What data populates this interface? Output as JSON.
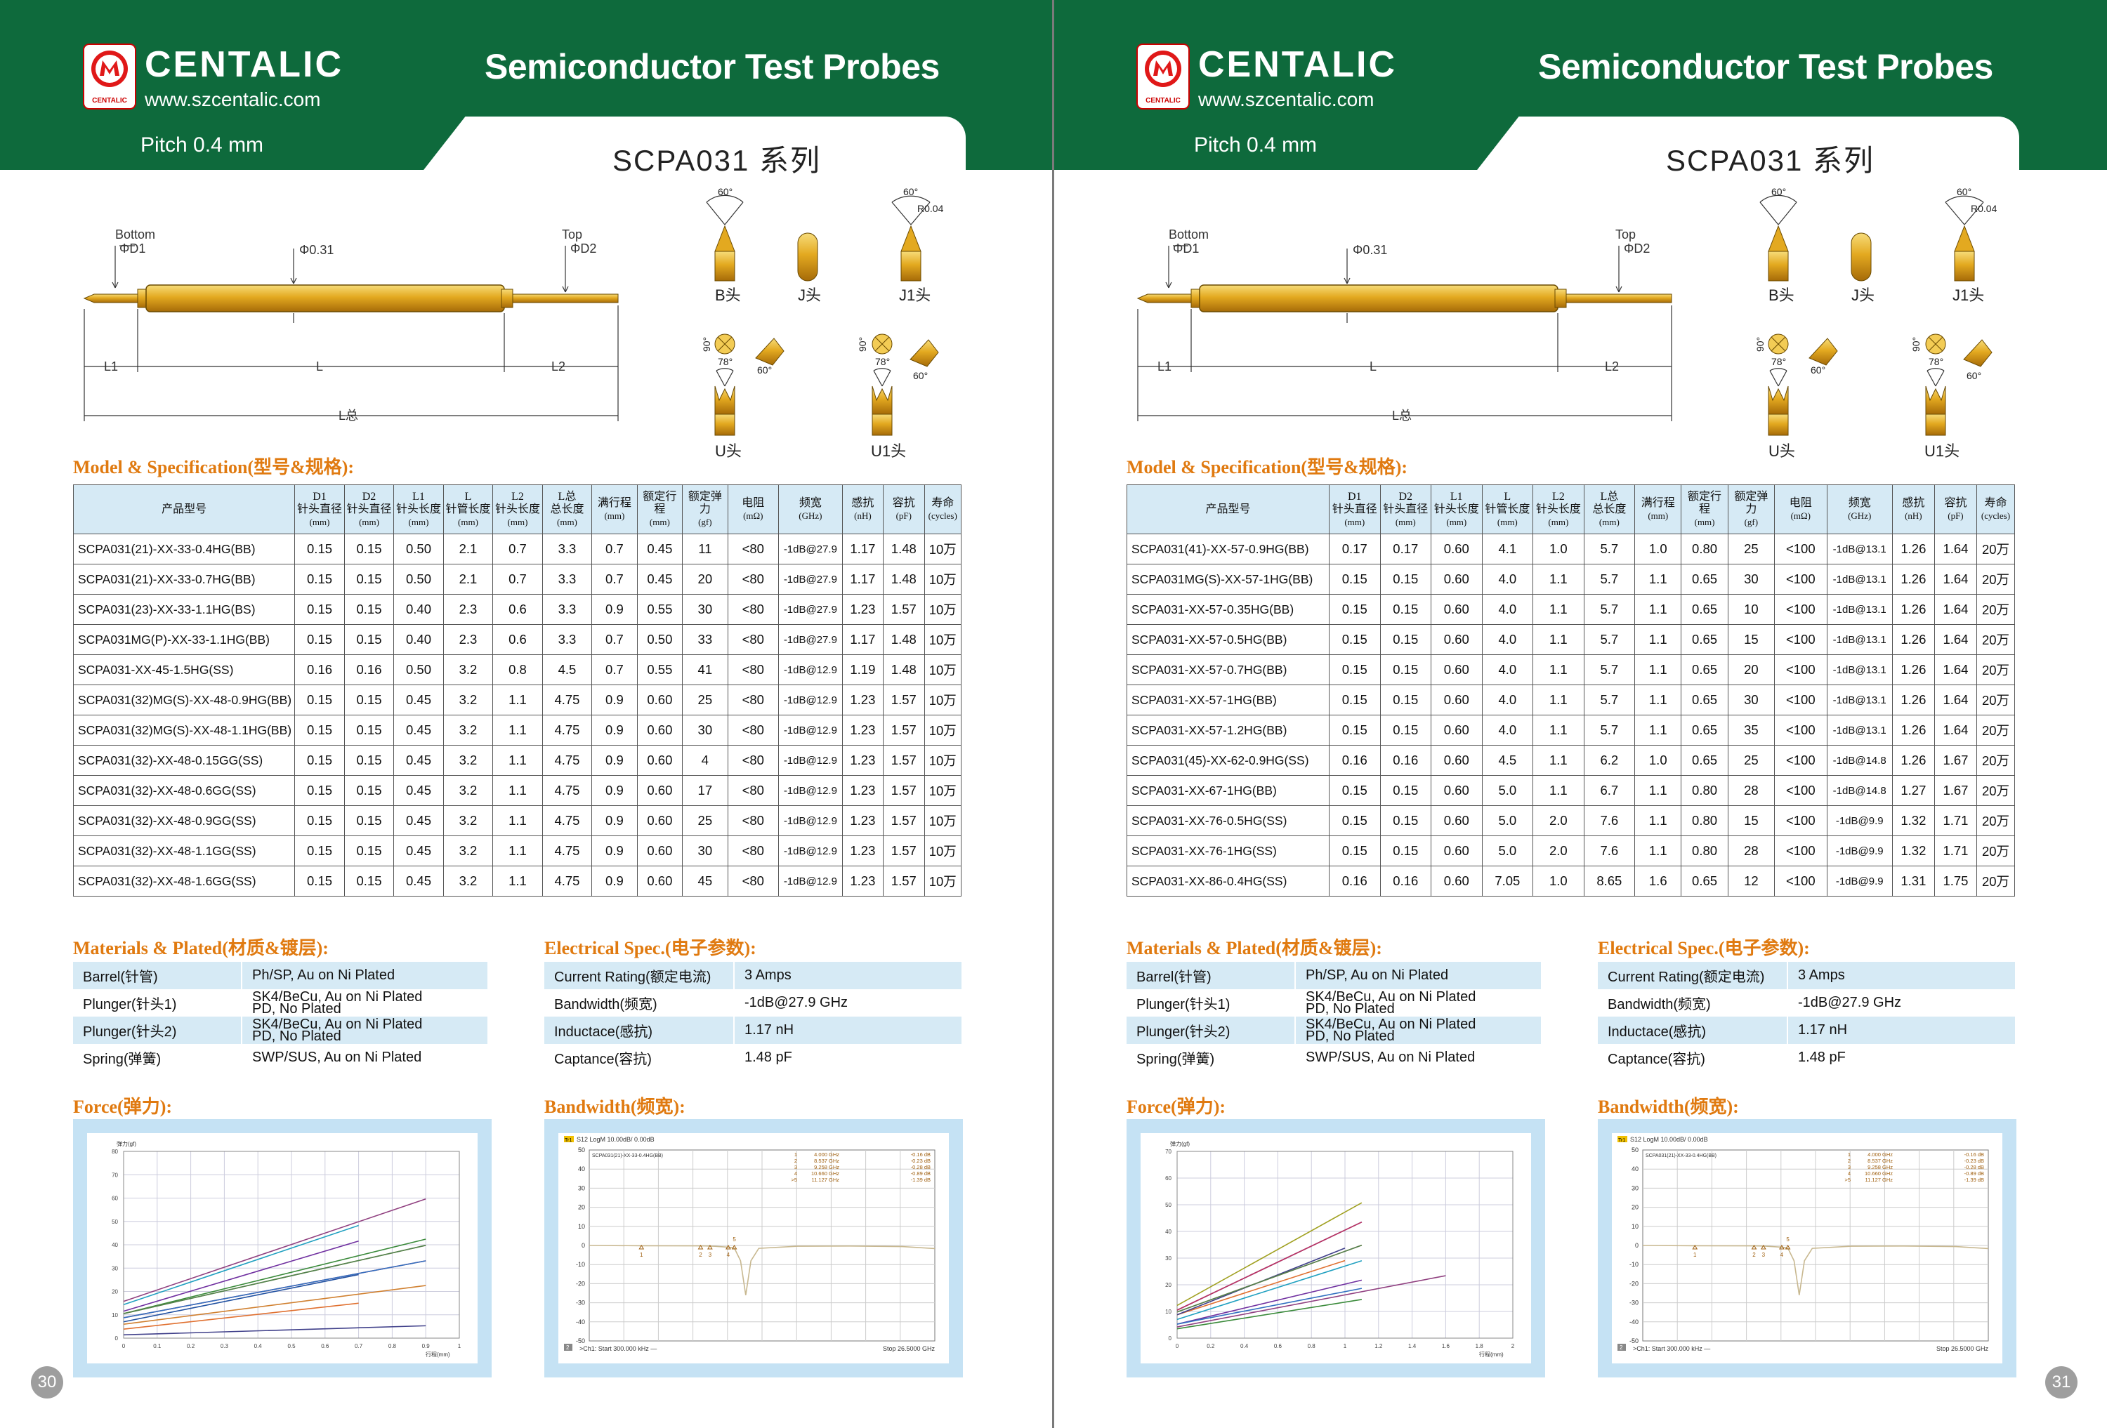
{
  "brand": {
    "name": "CENTALIC",
    "website": "www.szcentalic.com",
    "logo_text": "CENTALIC"
  },
  "header": {
    "title": "Semiconductor  Test Probes",
    "pitch": "Pitch 0.4 mm",
    "series": "SCPA031 系列"
  },
  "diagram": {
    "bottom": "Bottom",
    "d1": "ΦD1",
    "top": "Top",
    "d2": "ΦD2",
    "dia": "Φ0.31",
    "l1": "L1",
    "l": "L",
    "l2": "L2",
    "ltotal": "L总"
  },
  "tips": {
    "b": "B头",
    "j": "J头",
    "j1": "J1头",
    "u": "U头",
    "u1": "U1头",
    "a60": "60°",
    "a90": "90°",
    "a78": "78°",
    "r": "R0.04"
  },
  "sections": {
    "model": "Model & Specification(型号&规格):",
    "materials": "Materials & Plated(材质&镀层):",
    "electrical": "Electrical Spec.(电子参数):",
    "force": "Force(弹力):",
    "bandwidth": "Bandwidth(频宽):"
  },
  "spec_headers": [
    {
      "t": "产品型号",
      "u": ""
    },
    {
      "t": "D1 针头直径",
      "u": "(mm)"
    },
    {
      "t": "D2 针头直径",
      "u": "(mm)"
    },
    {
      "t": "L1 针头长度",
      "u": "(mm)"
    },
    {
      "t": "L 针管长度",
      "u": "(mm)"
    },
    {
      "t": "L2 针头长度",
      "u": "(mm)"
    },
    {
      "t": "L总 总长度",
      "u": "(mm)"
    },
    {
      "t": "满行程",
      "u": "(mm)"
    },
    {
      "t": "额定行程",
      "u": "(mm)"
    },
    {
      "t": "额定弹力",
      "u": "(gf)"
    },
    {
      "t": "电阻",
      "u": "(mΩ)"
    },
    {
      "t": "频宽",
      "u": "(GHz)"
    },
    {
      "t": "感抗",
      "u": "(nH)"
    },
    {
      "t": "容抗",
      "u": "(pF)"
    },
    {
      "t": "寿命",
      "u": "(cycles)"
    }
  ],
  "left": {
    "page_number": "30",
    "rows": [
      [
        "SCPA031(21)-XX-33-0.4HG(BB)",
        "0.15",
        "0.15",
        "0.50",
        "2.1",
        "0.7",
        "3.3",
        "0.7",
        "0.45",
        "11",
        "<80",
        "-1dB@27.9",
        "1.17",
        "1.48",
        "10万"
      ],
      [
        "SCPA031(21)-XX-33-0.7HG(BB)",
        "0.15",
        "0.15",
        "0.50",
        "2.1",
        "0.7",
        "3.3",
        "0.7",
        "0.45",
        "20",
        "<80",
        "-1dB@27.9",
        "1.17",
        "1.48",
        "10万"
      ],
      [
        "SCPA031(23)-XX-33-1.1HG(BS)",
        "0.15",
        "0.15",
        "0.40",
        "2.3",
        "0.6",
        "3.3",
        "0.9",
        "0.55",
        "30",
        "<80",
        "-1dB@27.9",
        "1.23",
        "1.57",
        "10万"
      ],
      [
        "SCPA031MG(P)-XX-33-1.1HG(BB)",
        "0.15",
        "0.15",
        "0.40",
        "2.3",
        "0.6",
        "3.3",
        "0.7",
        "0.50",
        "33",
        "<80",
        "-1dB@27.9",
        "1.17",
        "1.48",
        "10万"
      ],
      [
        "SCPA031-XX-45-1.5HG(SS)",
        "0.16",
        "0.16",
        "0.50",
        "3.2",
        "0.8",
        "4.5",
        "0.7",
        "0.55",
        "41",
        "<80",
        "-1dB@12.9",
        "1.19",
        "1.48",
        "10万"
      ],
      [
        "SCPA031(32)MG(S)-XX-48-0.9HG(BB)",
        "0.15",
        "0.15",
        "0.45",
        "3.2",
        "1.1",
        "4.75",
        "0.9",
        "0.60",
        "25",
        "<80",
        "-1dB@12.9",
        "1.23",
        "1.57",
        "10万"
      ],
      [
        "SCPA031(32)MG(S)-XX-48-1.1HG(BB)",
        "0.15",
        "0.15",
        "0.45",
        "3.2",
        "1.1",
        "4.75",
        "0.9",
        "0.60",
        "30",
        "<80",
        "-1dB@12.9",
        "1.23",
        "1.57",
        "10万"
      ],
      [
        "SCPA031(32)-XX-48-0.15GG(SS)",
        "0.15",
        "0.15",
        "0.45",
        "3.2",
        "1.1",
        "4.75",
        "0.9",
        "0.60",
        "4",
        "<80",
        "-1dB@12.9",
        "1.23",
        "1.57",
        "10万"
      ],
      [
        "SCPA031(32)-XX-48-0.6GG(SS)",
        "0.15",
        "0.15",
        "0.45",
        "3.2",
        "1.1",
        "4.75",
        "0.9",
        "0.60",
        "17",
        "<80",
        "-1dB@12.9",
        "1.23",
        "1.57",
        "10万"
      ],
      [
        "SCPA031(32)-XX-48-0.9GG(SS)",
        "0.15",
        "0.15",
        "0.45",
        "3.2",
        "1.1",
        "4.75",
        "0.9",
        "0.60",
        "25",
        "<80",
        "-1dB@12.9",
        "1.23",
        "1.57",
        "10万"
      ],
      [
        "SCPA031(32)-XX-48-1.1GG(SS)",
        "0.15",
        "0.15",
        "0.45",
        "3.2",
        "1.1",
        "4.75",
        "0.9",
        "0.60",
        "30",
        "<80",
        "-1dB@12.9",
        "1.23",
        "1.57",
        "10万"
      ],
      [
        "SCPA031(32)-XX-48-1.6GG(SS)",
        "0.15",
        "0.15",
        "0.45",
        "3.2",
        "1.1",
        "4.75",
        "0.9",
        "0.60",
        "45",
        "<80",
        "-1dB@12.9",
        "1.23",
        "1.57",
        "10万"
      ]
    ]
  },
  "right": {
    "page_number": "31",
    "rows": [
      [
        "SCPA031(41)-XX-57-0.9HG(BB)",
        "0.17",
        "0.17",
        "0.60",
        "4.1",
        "1.0",
        "5.7",
        "1.0",
        "0.80",
        "25",
        "<100",
        "-1dB@13.1",
        "1.26",
        "1.64",
        "20万"
      ],
      [
        "SCPA031MG(S)-XX-57-1HG(BB)",
        "0.15",
        "0.15",
        "0.60",
        "4.0",
        "1.1",
        "5.7",
        "1.1",
        "0.65",
        "30",
        "<100",
        "-1dB@13.1",
        "1.26",
        "1.64",
        "20万"
      ],
      [
        "SCPA031-XX-57-0.35HG(BB)",
        "0.15",
        "0.15",
        "0.60",
        "4.0",
        "1.1",
        "5.7",
        "1.1",
        "0.65",
        "10",
        "<100",
        "-1dB@13.1",
        "1.26",
        "1.64",
        "20万"
      ],
      [
        "SCPA031-XX-57-0.5HG(BB)",
        "0.15",
        "0.15",
        "0.60",
        "4.0",
        "1.1",
        "5.7",
        "1.1",
        "0.65",
        "15",
        "<100",
        "-1dB@13.1",
        "1.26",
        "1.64",
        "20万"
      ],
      [
        "SCPA031-XX-57-0.7HG(BB)",
        "0.15",
        "0.15",
        "0.60",
        "4.0",
        "1.1",
        "5.7",
        "1.1",
        "0.65",
        "20",
        "<100",
        "-1dB@13.1",
        "1.26",
        "1.64",
        "20万"
      ],
      [
        "SCPA031-XX-57-1HG(BB)",
        "0.15",
        "0.15",
        "0.60",
        "4.0",
        "1.1",
        "5.7",
        "1.1",
        "0.65",
        "30",
        "<100",
        "-1dB@13.1",
        "1.26",
        "1.64",
        "20万"
      ],
      [
        "SCPA031-XX-57-1.2HG(BB)",
        "0.15",
        "0.15",
        "0.60",
        "4.0",
        "1.1",
        "5.7",
        "1.1",
        "0.65",
        "35",
        "<100",
        "-1dB@13.1",
        "1.26",
        "1.64",
        "20万"
      ],
      [
        "SCPA031(45)-XX-62-0.9HG(SS)",
        "0.16",
        "0.16",
        "0.60",
        "4.5",
        "1.1",
        "6.2",
        "1.0",
        "0.65",
        "25",
        "<100",
        "-1dB@14.8",
        "1.26",
        "1.67",
        "20万"
      ],
      [
        "SCPA031-XX-67-1HG(BB)",
        "0.15",
        "0.15",
        "0.60",
        "5.0",
        "1.1",
        "6.7",
        "1.1",
        "0.80",
        "28",
        "<100",
        "-1dB@14.8",
        "1.27",
        "1.67",
        "20万"
      ],
      [
        "SCPA031-XX-76-0.5HG(SS)",
        "0.15",
        "0.15",
        "0.60",
        "5.0",
        "2.0",
        "7.6",
        "1.1",
        "0.80",
        "15",
        "<100",
        "-1dB@9.9",
        "1.32",
        "1.71",
        "20万"
      ],
      [
        "SCPA031-XX-76-1HG(SS)",
        "0.15",
        "0.15",
        "0.60",
        "5.0",
        "2.0",
        "7.6",
        "1.1",
        "0.80",
        "28",
        "<100",
        "-1dB@9.9",
        "1.32",
        "1.71",
        "20万"
      ],
      [
        "SCPA031-XX-86-0.4HG(SS)",
        "0.16",
        "0.16",
        "0.60",
        "7.05",
        "1.0",
        "8.65",
        "1.6",
        "0.65",
        "12",
        "<100",
        "-1dB@9.9",
        "1.31",
        "1.75",
        "20万"
      ]
    ]
  },
  "materials": [
    [
      "Barrel(针管)",
      "Ph/SP, Au on Ni Plated",
      ""
    ],
    [
      "Plunger(针头1)",
      "SK4/BeCu, Au on Ni Plated",
      "PD, No Plated"
    ],
    [
      "Plunger(针头2)",
      "SK4/BeCu, Au on Ni Plated",
      "PD, No Plated"
    ],
    [
      "Spring(弹簧)",
      "SWP/SUS, Au on Ni Plated",
      ""
    ]
  ],
  "electrical": [
    [
      "Current Rating(额定电流)",
      "3 Amps"
    ],
    [
      "Bandwidth(频宽)",
      "-1dB@27.9 GHz"
    ],
    [
      "Inductace(感抗)",
      "1.17 nH"
    ],
    [
      "Captance(容抗)",
      "1.48 pF"
    ]
  ],
  "force_chart": {
    "ylabel": "弹力(gf)",
    "xlabel": "行程(mm)",
    "left": {
      "xticks": [
        "0",
        "0.1",
        "0.2",
        "0.3",
        "0.4",
        "0.5",
        "0.6",
        "0.7",
        "0.8",
        "0.9",
        "1"
      ],
      "yticks": [
        "0",
        "10",
        "20",
        "30",
        "40",
        "50",
        "60",
        "70",
        "80"
      ]
    },
    "right": {
      "xticks": [
        "0",
        "0.2",
        "0.4",
        "0.6",
        "0.8",
        "1",
        "1.2",
        "1.4",
        "1.6",
        "1.8",
        "2"
      ],
      "yticks": [
        "0",
        "10",
        "20",
        "30",
        "40",
        "50",
        "60",
        "70"
      ]
    }
  },
  "bw_chart": {
    "header": "S12 LogM 10.00dB/ 0.00dB",
    "trace": "Tr1",
    "model": "SCPA031(21)-XX-33-0.4HG(BB)",
    "yticks": [
      "50",
      "40",
      "30",
      "20",
      "10",
      "0",
      "-10",
      "-20",
      "-30",
      "-40",
      "-50"
    ],
    "markers": [
      [
        "1",
        "4.000 GHz",
        "-0.16 dB"
      ],
      [
        "2",
        "8.537 GHz",
        "-0.23 dB"
      ],
      [
        "3",
        "9.258 GHz",
        "-0.28 dB"
      ],
      [
        "4",
        "10.660 GHz",
        "-0.89 dB"
      ],
      [
        ">5",
        "11.127 GHz",
        "-1.39 dB"
      ]
    ],
    "marker_labels": [
      "1",
      "2",
      "3",
      "4",
      "5"
    ],
    "ch": "2",
    "start": ">Ch1: Start   300.000 kHz —",
    "stop": "Stop  26.5000 GHz"
  },
  "colors": {
    "header_green": "#0e6a3c",
    "accent_orange": "#e07a10",
    "table_header_bg": "#d6eaf5",
    "gold": "#d9a425"
  }
}
